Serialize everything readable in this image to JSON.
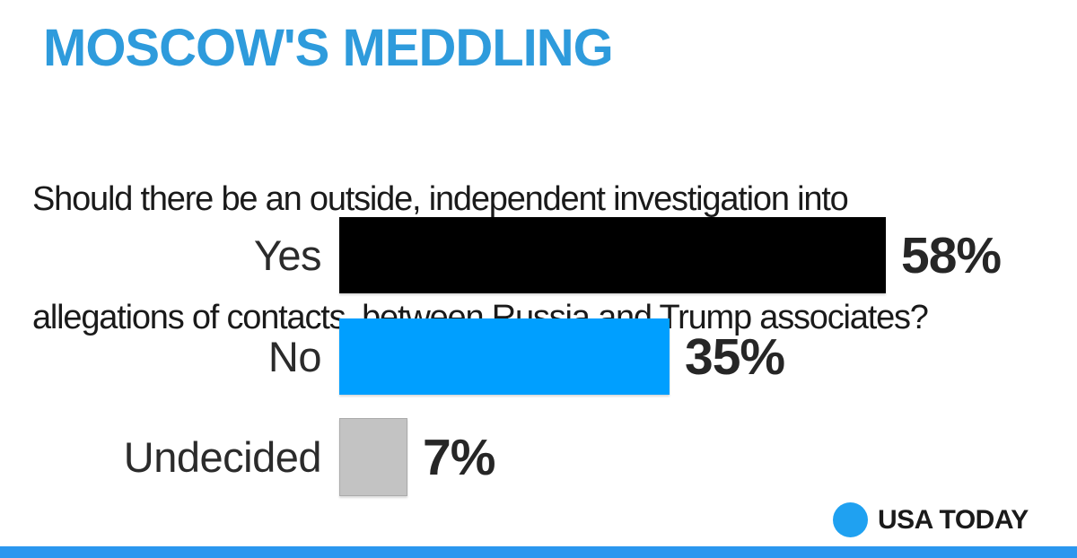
{
  "header": {
    "title": "MOSCOW'S MEDDLING",
    "title_color": "#2E9BDC"
  },
  "question": {
    "text": "Should there be an outside, independent investigation into allegations of contacts  between Russia and Trump associates?",
    "lines": [
      "Should there be an outside, independent investigation into",
      "allegations of contacts  between Russia and Trump associates?"
    ],
    "text_color": "#1A1A1A"
  },
  "chart_data": {
    "type": "bar",
    "orientation": "horizontal",
    "title": "MOSCOW'S MEDDLING",
    "subtitle": "Should there be an outside, independent investigation into allegations of contacts  between Russia and Trump associates?",
    "categories": [
      "Yes",
      "No",
      "Undecided"
    ],
    "values": [
      58,
      35,
      7
    ],
    "value_labels": [
      "58%",
      "35%",
      "7%"
    ],
    "unit": "%",
    "xlim": [
      0,
      100
    ],
    "grid": false,
    "legend": false,
    "bar_colors": [
      "#000000",
      "#009FFF",
      "#C3C3C3"
    ],
    "category_label_color": "#2B2B2B",
    "value_label_color": "#262626"
  },
  "footer": {
    "brand": "USA TODAY",
    "brand_color": "#1A1A1A",
    "logo_circle_color": "#1FA1F1",
    "strip_color": "#2B97EF"
  }
}
